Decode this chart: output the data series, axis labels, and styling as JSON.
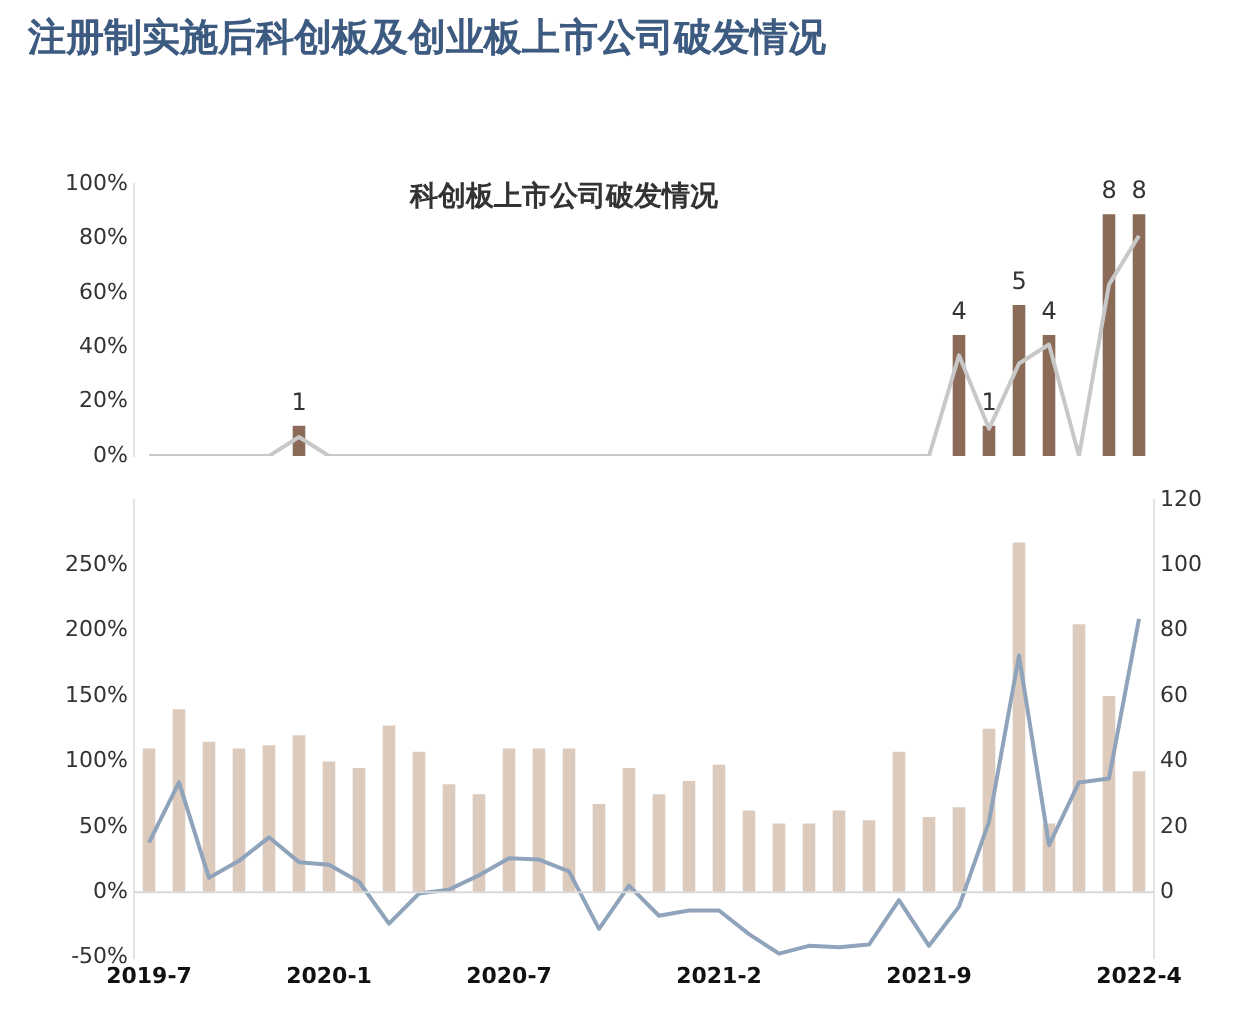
{
  "chart_data": [
    {
      "type": "bar",
      "title": "注册制实施后科创板及创业板上市公司破发情况",
      "subtitle": "科创板上市公司破发情况",
      "categories": [
        "2019-7",
        null,
        null,
        null,
        null,
        null,
        "2020-1",
        null,
        null,
        null,
        null,
        null,
        "2020-7",
        null,
        null,
        null,
        null,
        null,
        null,
        "2021-2",
        null,
        null,
        null,
        null,
        null,
        null,
        "2021-9",
        null,
        null,
        null,
        null,
        null,
        null,
        "2022-4"
      ],
      "ylim": [
        0,
        100
      ],
      "yticks": [
        {
          "value": 0,
          "label": "0%"
        },
        {
          "value": 20,
          "label": "20%"
        },
        {
          "value": 40,
          "label": "40%"
        },
        {
          "value": 60,
          "label": "60%"
        },
        {
          "value": 80,
          "label": "80%"
        },
        {
          "value": 100,
          "label": "100%"
        }
      ],
      "y2lim": [
        0,
        9
      ],
      "tick_labels": "y",
      "legend": false,
      "grid": false,
      "series": [
        {
          "axis": "y2",
          "color": "#8b6a58",
          "values": [
            null,
            null,
            null,
            null,
            null,
            1,
            null,
            null,
            null,
            null,
            null,
            null,
            null,
            null,
            null,
            null,
            null,
            null,
            null,
            null,
            null,
            null,
            null,
            null,
            null,
            null,
            null,
            4,
            1,
            5,
            4,
            null,
            8,
            8
          ],
          "value_labels": [
            null,
            null,
            null,
            null,
            null,
            "1",
            null,
            null,
            null,
            null,
            null,
            null,
            null,
            null,
            null,
            null,
            null,
            null,
            null,
            null,
            null,
            null,
            null,
            null,
            null,
            null,
            null,
            "4",
            "1",
            "5",
            "4",
            null,
            "8",
            "8"
          ]
        },
        {
          "type": "line",
          "color": "#c8c8c8",
          "values": [
            0,
            0,
            0,
            0,
            0,
            7,
            0,
            0,
            0,
            0,
            0,
            0,
            0,
            0,
            0,
            0,
            0,
            0,
            0,
            0,
            0,
            0,
            0,
            0,
            0,
            0,
            0,
            37,
            10,
            34,
            41,
            0,
            63,
            81
          ]
        }
      ]
    },
    {
      "type": "bar",
      "categories": [
        "2019-7",
        null,
        null,
        null,
        null,
        null,
        "2020-1",
        null,
        null,
        null,
        null,
        null,
        "2020-7",
        null,
        null,
        null,
        null,
        null,
        null,
        "2021-2",
        null,
        null,
        null,
        null,
        null,
        null,
        "2021-9",
        null,
        null,
        null,
        null,
        null,
        null,
        "2022-4"
      ],
      "ylim": [
        -50,
        300
      ],
      "yticks": [
        {
          "value": -50,
          "label": "-50%"
        },
        {
          "value": 0,
          "label": "0%"
        },
        {
          "value": 50,
          "label": "50%"
        },
        {
          "value": 100,
          "label": "100%"
        },
        {
          "value": 150,
          "label": "150%"
        },
        {
          "value": 200,
          "label": "200%"
        },
        {
          "value": 250,
          "label": "250%"
        }
      ],
      "y2lim": [
        -20,
        120
      ],
      "y2ticks": [
        0,
        20,
        40,
        60,
        80,
        100,
        120
      ],
      "legend": false,
      "grid": false,
      "ref_lines": [
        {
          "axis": "y",
          "value": 0,
          "color": "#d9d9d9"
        }
      ],
      "series": [
        {
          "axis": "y2",
          "color": "#dccbbd",
          "values": [
            44,
            56,
            46,
            44,
            45,
            48,
            40,
            38,
            51,
            43,
            33,
            30,
            44,
            44,
            44,
            27,
            38,
            30,
            34,
            39,
            25,
            21,
            21,
            25,
            22,
            43,
            23,
            26,
            50,
            107,
            21,
            82,
            60,
            37
          ]
        },
        {
          "type": "line",
          "color": "#8fa3bb",
          "values": [
            38,
            84,
            11,
            24,
            42,
            23,
            21,
            8,
            -24,
            -1,
            2,
            13,
            26,
            25,
            16,
            -28,
            5,
            -18,
            -14,
            -14,
            -32,
            -47,
            -41,
            -42,
            -40,
            -6,
            -41,
            -11,
            54,
            181,
            36,
            84,
            87,
            209
          ]
        }
      ]
    }
  ]
}
